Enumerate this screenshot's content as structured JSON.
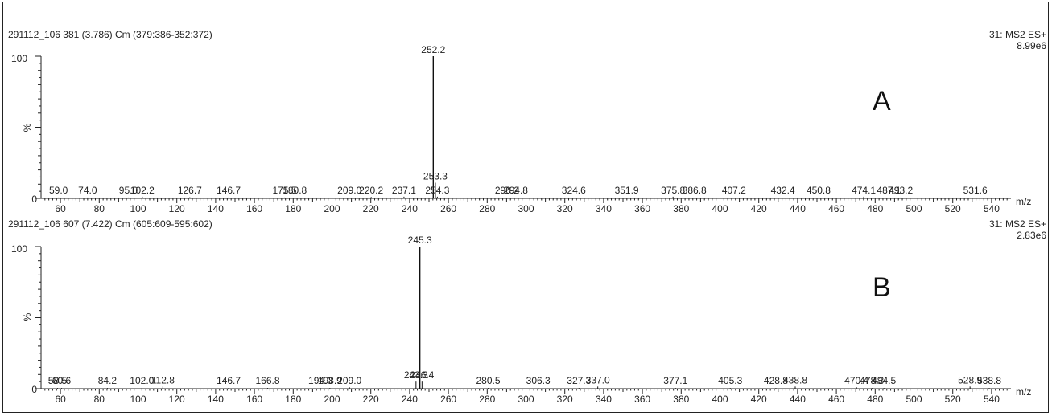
{
  "chart_data": [
    {
      "type": "bar",
      "panel_label": "A",
      "header_left": "291112_106 381 (3.786) Cm (379:386-352:372)",
      "header_right": "31: MS2 ES+",
      "intensity": "8.99e6",
      "ylabel": "%",
      "y_tick_labels": [
        "100",
        "0"
      ],
      "ylim": [
        0,
        100
      ],
      "xlabel": "m/z",
      "xlim": [
        50,
        550
      ],
      "x_ticks": [
        60,
        80,
        100,
        120,
        140,
        160,
        180,
        200,
        220,
        240,
        260,
        280,
        300,
        320,
        340,
        360,
        380,
        400,
        420,
        440,
        460,
        480,
        500,
        520,
        540
      ],
      "peaks": [
        {
          "mz": 59.0,
          "label": "59.0",
          "intensity": 0.6
        },
        {
          "mz": 74.0,
          "label": "74.0",
          "intensity": 0.6
        },
        {
          "mz": 95.0,
          "label": "95.0",
          "intensity": 0.6
        },
        {
          "mz": 102.2,
          "label": "102.2",
          "intensity": 1.2
        },
        {
          "mz": 126.7,
          "label": "126.7",
          "intensity": 0.8
        },
        {
          "mz": 146.7,
          "label": "146.7",
          "intensity": 0.6
        },
        {
          "mz": 175.5,
          "label": "175.5",
          "intensity": 0.6
        },
        {
          "mz": 180.8,
          "label": "180.8",
          "intensity": 0.5
        },
        {
          "mz": 209.0,
          "label": "209.0",
          "intensity": 0.5
        },
        {
          "mz": 220.2,
          "label": "220.2",
          "intensity": 1.0
        },
        {
          "mz": 237.1,
          "label": "237.1",
          "intensity": 1.2
        },
        {
          "mz": 252.2,
          "label": "252.2",
          "intensity": 100
        },
        {
          "mz": 253.3,
          "label": "253.3",
          "intensity": 11
        },
        {
          "mz": 254.3,
          "label": "254.3",
          "intensity": 1.2
        },
        {
          "mz": 290.2,
          "label": "290.2",
          "intensity": 0.5
        },
        {
          "mz": 294.8,
          "label": "294.8",
          "intensity": 0.5
        },
        {
          "mz": 324.6,
          "label": "324.6",
          "intensity": 0.5
        },
        {
          "mz": 351.9,
          "label": "351.9",
          "intensity": 0.5
        },
        {
          "mz": 375.8,
          "label": "375.8",
          "intensity": 1.2
        },
        {
          "mz": 386.8,
          "label": "386.8",
          "intensity": 0.5
        },
        {
          "mz": 407.2,
          "label": "407.2",
          "intensity": 0.5
        },
        {
          "mz": 432.4,
          "label": "432.4",
          "intensity": 0.5
        },
        {
          "mz": 450.8,
          "label": "450.8",
          "intensity": 0.5
        },
        {
          "mz": 474.1,
          "label": "474.1",
          "intensity": 1.2
        },
        {
          "mz": 487.1,
          "label": "487.1",
          "intensity": 0.5
        },
        {
          "mz": 493.2,
          "label": "493.2",
          "intensity": 0.6
        },
        {
          "mz": 531.6,
          "label": "531.6",
          "intensity": 0.5
        }
      ]
    },
    {
      "type": "bar",
      "panel_label": "B",
      "header_left": "291112_106 607 (7.422) Cm (605:609-595:602)",
      "header_right": "31: MS2 ES+",
      "intensity": "2.83e6",
      "ylabel": "%",
      "y_tick_labels": [
        "100",
        "0"
      ],
      "ylim": [
        0,
        100
      ],
      "xlabel": "m/z",
      "xlim": [
        50,
        550
      ],
      "x_ticks": [
        60,
        80,
        100,
        120,
        140,
        160,
        180,
        200,
        220,
        240,
        260,
        280,
        300,
        320,
        340,
        360,
        380,
        400,
        420,
        440,
        460,
        480,
        500,
        520,
        540
      ],
      "peaks": [
        {
          "mz": 58.5,
          "label": "58.5",
          "intensity": 0.5
        },
        {
          "mz": 60.6,
          "label": "60.6",
          "intensity": 0.5
        },
        {
          "mz": 84.2,
          "label": "84.2",
          "intensity": 0.5
        },
        {
          "mz": 102.0,
          "label": "102.0",
          "intensity": 0.5
        },
        {
          "mz": 112.8,
          "label": "112.8",
          "intensity": 1.5
        },
        {
          "mz": 146.7,
          "label": "146.7",
          "intensity": 0.5
        },
        {
          "mz": 166.8,
          "label": "166.8",
          "intensity": 0.5
        },
        {
          "mz": 194.0,
          "label": "194.0",
          "intensity": 0.5
        },
        {
          "mz": 198.9,
          "label": "198.9",
          "intensity": 0.5
        },
        {
          "mz": 209.0,
          "label": "209.0",
          "intensity": 1.0
        },
        {
          "mz": 243.3,
          "label": "243.3",
          "intensity": 5
        },
        {
          "mz": 245.3,
          "label": "245.3",
          "intensity": 100
        },
        {
          "mz": 246.4,
          "label": "246.4",
          "intensity": 5
        },
        {
          "mz": 280.5,
          "label": "280.5",
          "intensity": 0.5
        },
        {
          "mz": 306.3,
          "label": "306.3",
          "intensity": 0.5
        },
        {
          "mz": 327.3,
          "label": "327.3",
          "intensity": 0.5
        },
        {
          "mz": 337.0,
          "label": "337.0",
          "intensity": 1.5
        },
        {
          "mz": 377.1,
          "label": "377.1",
          "intensity": 0.5
        },
        {
          "mz": 405.3,
          "label": "405.3",
          "intensity": 0.5
        },
        {
          "mz": 428.8,
          "label": "428.8",
          "intensity": 0.5
        },
        {
          "mz": 438.8,
          "label": "438.8",
          "intensity": 1.5
        },
        {
          "mz": 470.4,
          "label": "470.4",
          "intensity": 1.0
        },
        {
          "mz": 478.3,
          "label": "478.3",
          "intensity": 0.5
        },
        {
          "mz": 484.5,
          "label": "484.5",
          "intensity": 0.5
        },
        {
          "mz": 528.9,
          "label": "528.9",
          "intensity": 1.5
        },
        {
          "mz": 538.8,
          "label": "538.8",
          "intensity": 0.5
        }
      ]
    }
  ]
}
